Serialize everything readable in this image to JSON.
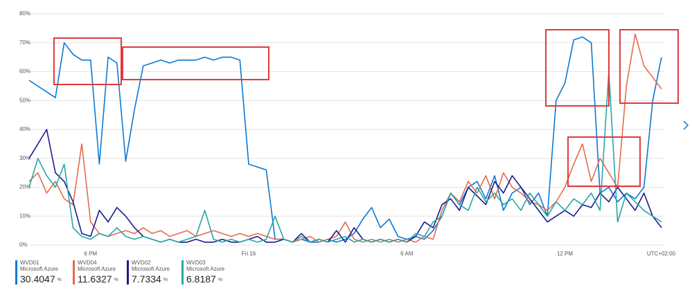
{
  "chart_data": {
    "type": "line",
    "categories": [
      null,
      null,
      null,
      null,
      null,
      null,
      null,
      "6 PM",
      null,
      null,
      null,
      null,
      null,
      null,
      null,
      null,
      null,
      null,
      null,
      null,
      null,
      null,
      null,
      null,
      null,
      "Fri 16",
      null,
      null,
      null,
      null,
      null,
      null,
      null,
      null,
      null,
      null,
      null,
      null,
      null,
      null,
      null,
      null,
      null,
      "6 AM",
      null,
      null,
      null,
      null,
      null,
      null,
      null,
      null,
      null,
      null,
      null,
      null,
      null,
      null,
      null,
      null,
      null,
      "12 PM",
      null,
      null,
      null,
      null,
      null,
      null,
      null,
      null,
      null,
      null,
      null
    ],
    "timezone_label": "UTC+02:00",
    "ylim": [
      0,
      80
    ],
    "yticks": [
      {
        "value": 0,
        "label": "0%"
      },
      {
        "value": 10,
        "label": "10%"
      },
      {
        "value": 20,
        "label": "20%"
      },
      {
        "value": 30,
        "label": "30%"
      },
      {
        "value": 40,
        "label": "40%"
      },
      {
        "value": 50,
        "label": "50%"
      },
      {
        "value": 60,
        "label": "60%"
      },
      {
        "value": 70,
        "label": "70%"
      },
      {
        "value": 80,
        "label": "80%"
      }
    ],
    "grid": true,
    "summary_unit": "%",
    "series": [
      {
        "name": "WVD01",
        "source": "Microsoft Azure",
        "summary": 30.4047,
        "color": "#0a78d4",
        "values": [
          57,
          55,
          53,
          51,
          70,
          66,
          64,
          64,
          28,
          65,
          63,
          29,
          47,
          62,
          63,
          64,
          63,
          64,
          64,
          64,
          65,
          64,
          65,
          65,
          64,
          28,
          27,
          26,
          2,
          2,
          1,
          2,
          1,
          1,
          2,
          1,
          2,
          4,
          9,
          13,
          6,
          9,
          3,
          2,
          3,
          2,
          5,
          10,
          18,
          14,
          20,
          22,
          16,
          24,
          12,
          18,
          20,
          14,
          18,
          10,
          50,
          56,
          71,
          72,
          70,
          18,
          20,
          15,
          18,
          16,
          20,
          50,
          65
        ]
      },
      {
        "name": "WVD04",
        "source": "Microsoft Azure",
        "summary": 11.6327,
        "color": "#e8694a",
        "values": [
          22,
          25,
          18,
          22,
          16,
          14,
          35,
          8,
          4,
          3,
          4,
          5,
          4,
          6,
          4,
          5,
          3,
          4,
          5,
          3,
          4,
          5,
          4,
          3,
          4,
          3,
          4,
          3,
          2,
          2,
          1,
          2,
          3,
          1,
          2,
          3,
          8,
          2,
          1,
          2,
          1,
          2,
          1,
          2,
          1,
          3,
          2,
          12,
          18,
          15,
          22,
          18,
          24,
          16,
          25,
          20,
          18,
          15,
          14,
          12,
          15,
          20,
          28,
          35,
          22,
          30,
          25,
          20,
          55,
          73,
          62,
          58,
          54
        ]
      },
      {
        "name": "WVD02",
        "source": "Microsoft Azure",
        "summary": 7.7334,
        "color": "#1b1a8e",
        "values": [
          30,
          35,
          40,
          25,
          22,
          15,
          4,
          3,
          12,
          8,
          13,
          10,
          6,
          3,
          2,
          1,
          2,
          1,
          1,
          2,
          1,
          1,
          2,
          1,
          1,
          2,
          3,
          1,
          1,
          2,
          1,
          4,
          1,
          2,
          1,
          5,
          1,
          6,
          2,
          1,
          2,
          1,
          2,
          1,
          3,
          8,
          6,
          14,
          16,
          12,
          20,
          17,
          14,
          22,
          18,
          24,
          20,
          16,
          12,
          8,
          10,
          12,
          10,
          14,
          13,
          18,
          15,
          20,
          16,
          12,
          18,
          10,
          6
        ]
      },
      {
        "name": "WVD03",
        "source": "Microsoft Azure",
        "summary": 6.8187,
        "color": "#26a6a6",
        "values": [
          20,
          30,
          24,
          20,
          28,
          6,
          3,
          2,
          4,
          3,
          6,
          3,
          2,
          3,
          2,
          1,
          2,
          1,
          2,
          3,
          12,
          2,
          1,
          2,
          1,
          2,
          1,
          2,
          10,
          2,
          1,
          3,
          1,
          2,
          1,
          2,
          3,
          1,
          2,
          1,
          2,
          1,
          2,
          1,
          4,
          3,
          8,
          10,
          18,
          14,
          12,
          20,
          15,
          18,
          14,
          16,
          12,
          18,
          14,
          10,
          15,
          12,
          16,
          14,
          18,
          12,
          60,
          8,
          18,
          15,
          12,
          10,
          8
        ]
      }
    ]
  }
}
